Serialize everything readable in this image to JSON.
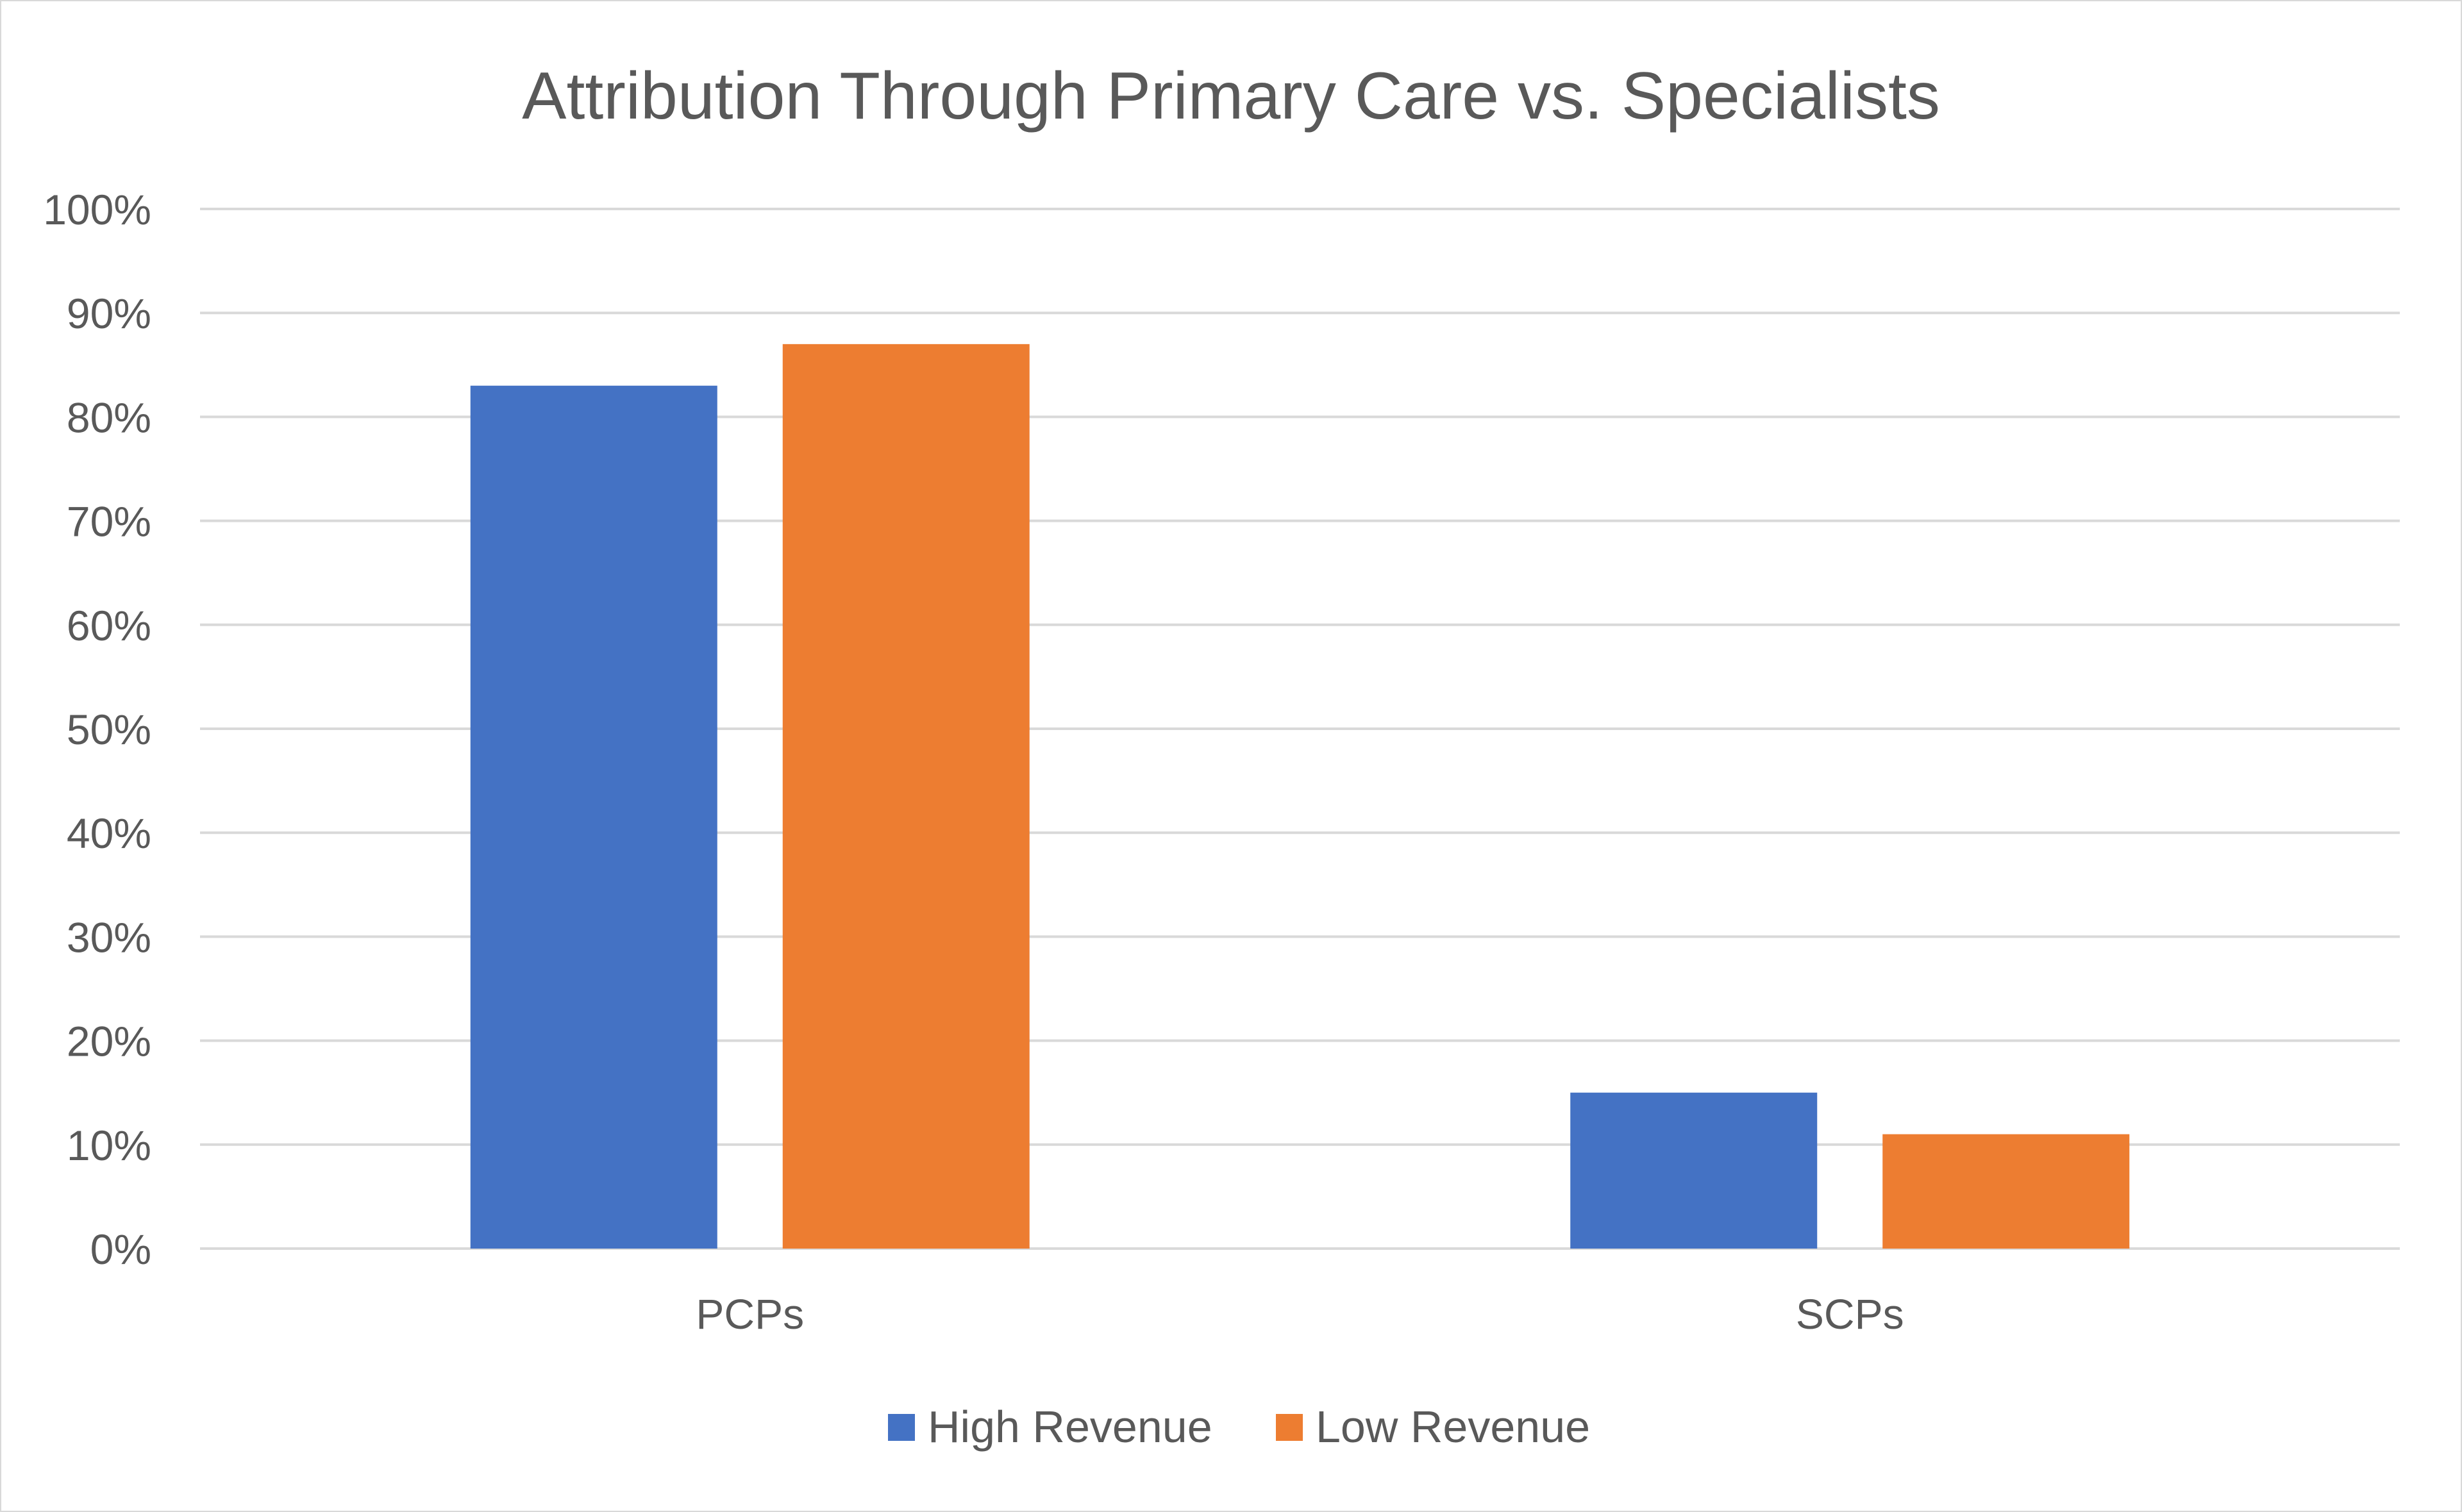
{
  "chart_data": {
    "type": "bar",
    "title": "Attribution Through Primary Care vs. Specialists",
    "categories": [
      "PCPs",
      "SCPs"
    ],
    "series": [
      {
        "name": "High Revenue",
        "values": [
          0.83,
          0.15
        ],
        "color": "#4472C4"
      },
      {
        "name": "Low Revenue",
        "values": [
          0.87,
          0.11
        ],
        "color": "#ED7D31"
      }
    ],
    "ylim": [
      0,
      1
    ],
    "yticks": [
      "0%",
      "10%",
      "20%",
      "30%",
      "40%",
      "50%",
      "60%",
      "70%",
      "80%",
      "90%",
      "100%"
    ],
    "grid": true,
    "legend": "bottom",
    "xlabel": "",
    "ylabel": ""
  }
}
